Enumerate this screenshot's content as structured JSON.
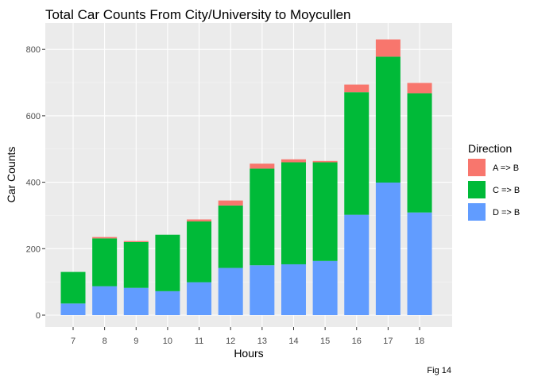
{
  "chart_data": {
    "type": "bar",
    "stacked": true,
    "title": "Total Car Counts From City/University to Moycullen",
    "xlabel": "Hours",
    "ylabel": "Car Counts",
    "caption": "Fig 14",
    "categories": [
      "7",
      "8",
      "9",
      "10",
      "11",
      "12",
      "13",
      "14",
      "15",
      "16",
      "17",
      "18"
    ],
    "ylim": [
      0,
      860
    ],
    "yticks": [
      0,
      200,
      400,
      600,
      800
    ],
    "yticks_labels": [
      "0",
      "200",
      "400",
      "600",
      "800"
    ],
    "legend": {
      "title": "Direction",
      "position": "right"
    },
    "grid": true,
    "series": [
      {
        "name": "D => B",
        "color": "#619CFF",
        "values": [
          35,
          87,
          82,
          72,
          99,
          142,
          150,
          153,
          163,
          302,
          399,
          309
        ]
      },
      {
        "name": "C => B",
        "color": "#00BA38",
        "values": [
          95,
          144,
          138,
          170,
          183,
          188,
          291,
          307,
          297,
          369,
          379,
          359
        ]
      },
      {
        "name": "A => B",
        "color": "#F8766D",
        "values": [
          0,
          4,
          3,
          0,
          6,
          15,
          15,
          9,
          4,
          23,
          52,
          31
        ]
      }
    ],
    "legend_order": [
      "A => B",
      "C => B",
      "D => B"
    ]
  }
}
